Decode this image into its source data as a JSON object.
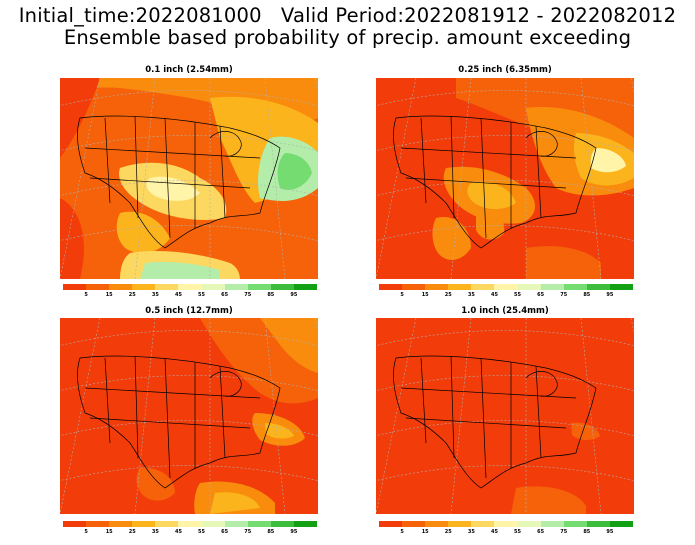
{
  "header": {
    "line1": "Initial_time:2022081000   Valid Period:2022081912 - 2022082012",
    "line2": "Ensemble based probability of precip. amount exceeding"
  },
  "panels": [
    {
      "title": "0.1 inch (2.54mm)"
    },
    {
      "title": "0.25 inch (6.35mm)"
    },
    {
      "title": "0.5 inch (12.7mm)"
    },
    {
      "title": "1.0 inch (25.4mm)"
    }
  ],
  "colorbar": {
    "labels": [
      "5",
      "15",
      "25",
      "35",
      "45",
      "55",
      "65",
      "75",
      "85",
      "95"
    ],
    "colors": [
      "#f23c0a",
      "#f6620a",
      "#f98c0c",
      "#fbb41c",
      "#fdd860",
      "#fff4a8",
      "#e6f8b8",
      "#b4ecaa",
      "#74dc70",
      "#3cbe3c",
      "#14a014"
    ]
  }
}
